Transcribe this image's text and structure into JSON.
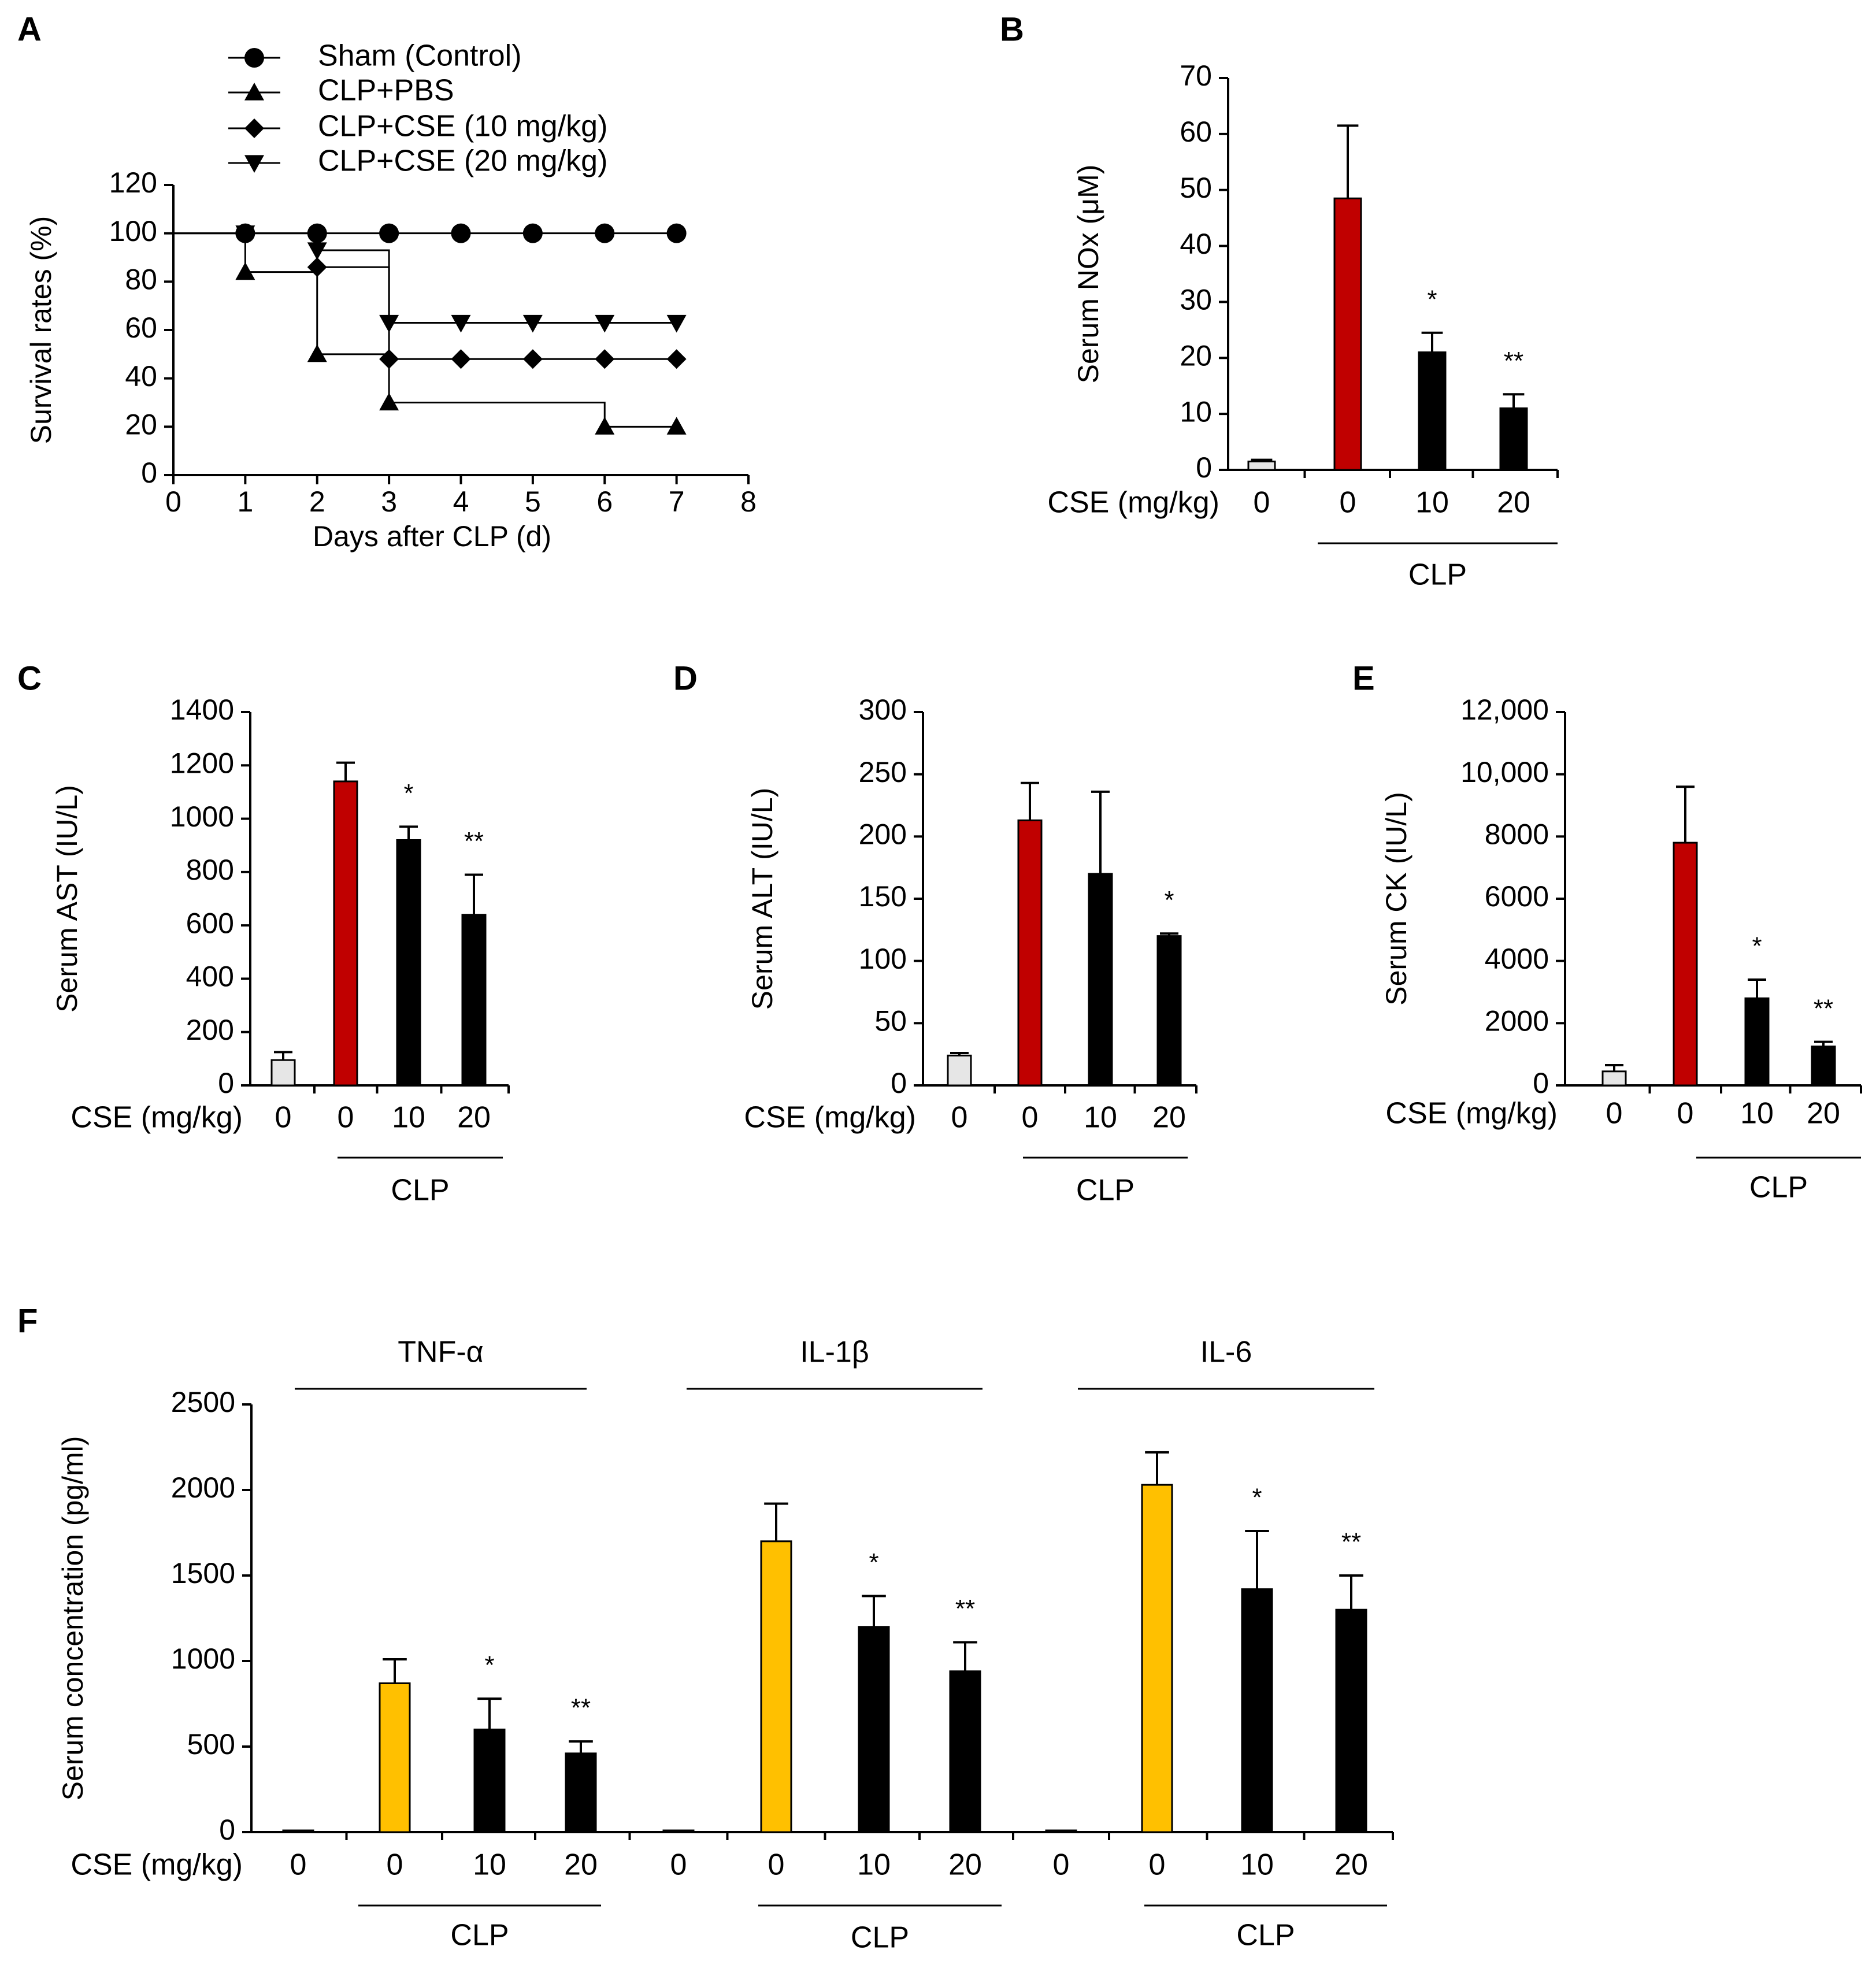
{
  "figure": {
    "colors": {
      "sham": "#e6e6e6",
      "clp_pbs_b_to_e": "#c00000",
      "clp_pbs_f": "#ffc000",
      "cse": "#000000"
    }
  },
  "chart_data": [
    {
      "panel": "A",
      "type": "line",
      "xlabel": "Days after CLP (d)",
      "ylabel": "Survival rates (%)",
      "xlim": [
        0,
        8
      ],
      "ylim": [
        0,
        120
      ],
      "xticks": [
        0,
        1,
        2,
        3,
        4,
        5,
        6,
        7,
        8
      ],
      "yticks": [
        0,
        20,
        40,
        60,
        80,
        100,
        120
      ],
      "legend_position": "top",
      "step_curve": true,
      "series": [
        {
          "name": "Sham (Control)",
          "marker": "circle",
          "x": [
            1,
            2,
            3,
            4,
            5,
            6,
            7
          ],
          "y": [
            100,
            100,
            100,
            100,
            100,
            100,
            100
          ]
        },
        {
          "name": "CLP+PBS",
          "marker": "triangle-up",
          "x": [
            1,
            2,
            3,
            6,
            7
          ],
          "y": [
            84,
            50,
            30,
            20,
            20
          ]
        },
        {
          "name": "CLP+CSE (10 mg/kg)",
          "marker": "diamond",
          "x": [
            1,
            2,
            3,
            4,
            5,
            6,
            7
          ],
          "y": [
            100,
            86,
            48,
            48,
            48,
            48,
            48
          ]
        },
        {
          "name": "CLP+CSE (20 mg/kg)",
          "marker": "triangle-down",
          "x": [
            1,
            2,
            3,
            4,
            5,
            6,
            7
          ],
          "y": [
            100,
            93,
            63,
            63,
            63,
            63,
            63
          ]
        }
      ]
    },
    {
      "panel": "B",
      "type": "bar",
      "ylabel": "Serum NOx (μM)",
      "ylim": [
        0,
        70
      ],
      "yticks": [
        "0",
        "10",
        "20",
        "30",
        "40",
        "50",
        "60",
        "70"
      ],
      "row_label": "CSE (mg/kg)",
      "categories": [
        "0",
        "0",
        "10",
        "20"
      ],
      "group_label": "CLP",
      "values": [
        1.5,
        48.5,
        21,
        11
      ],
      "errors": [
        0.3,
        13,
        3.5,
        2.5
      ],
      "significance": [
        "",
        "",
        "*",
        "**"
      ],
      "bar_colors": [
        "#e6e6e6",
        "#c00000",
        "#000000",
        "#000000"
      ]
    },
    {
      "panel": "C",
      "type": "bar",
      "ylabel": "Serum AST (IU/L)",
      "ylim": [
        0,
        1400
      ],
      "yticks": [
        "0",
        "200",
        "400",
        "600",
        "800",
        "1000",
        "1200",
        "1400"
      ],
      "row_label": "CSE (mg/kg)",
      "categories": [
        "0",
        "0",
        "10",
        "20"
      ],
      "group_label": "CLP",
      "values": [
        95,
        1140,
        920,
        640
      ],
      "errors": [
        30,
        70,
        50,
        150
      ],
      "significance": [
        "",
        "",
        "*",
        "**"
      ],
      "bar_colors": [
        "#e6e6e6",
        "#c00000",
        "#000000",
        "#000000"
      ]
    },
    {
      "panel": "D",
      "type": "bar",
      "ylabel": "Serum ALT (IU/L)",
      "ylim": [
        0,
        300
      ],
      "yticks": [
        "0",
        "50",
        "100",
        "150",
        "200",
        "250",
        "300"
      ],
      "row_label": "CSE (mg/kg)",
      "categories": [
        "0",
        "0",
        "10",
        "20"
      ],
      "group_label": "CLP",
      "values": [
        24,
        213,
        170,
        120
      ],
      "errors": [
        2,
        30,
        66,
        2
      ],
      "significance": [
        "",
        "",
        "",
        "*"
      ],
      "bar_colors": [
        "#e6e6e6",
        "#c00000",
        "#000000",
        "#000000"
      ]
    },
    {
      "panel": "E",
      "type": "bar",
      "ylabel": "Serum CK (IU/L)",
      "ylim": [
        0,
        12000
      ],
      "yticks": [
        "0",
        "2000",
        "4000",
        "6000",
        "8000",
        "10,000",
        "12,000"
      ],
      "row_label": "CSE (mg/kg)",
      "categories": [
        "0",
        "0",
        "10",
        "20"
      ],
      "group_label": "CLP",
      "values": [
        450,
        7800,
        2800,
        1250
      ],
      "errors": [
        200,
        1800,
        600,
        150
      ],
      "significance": [
        "",
        "",
        "*",
        "**"
      ],
      "bar_colors": [
        "#e6e6e6",
        "#c00000",
        "#000000",
        "#000000"
      ]
    },
    {
      "panel": "F",
      "type": "bar",
      "ylabel": "Serum concentration (pg/ml)",
      "ylim": [
        0,
        2500
      ],
      "yticks": [
        "0",
        "500",
        "1000",
        "1500",
        "2000",
        "2500"
      ],
      "row_label": "CSE (mg/kg)",
      "categories": [
        "0",
        "0",
        "10",
        "20",
        "0",
        "0",
        "10",
        "20",
        "0",
        "0",
        "10",
        "20"
      ],
      "group_labels": [
        "CLP",
        "CLP",
        "CLP"
      ],
      "cytokines": [
        "TNF-α",
        "IL-1β",
        "IL-6"
      ],
      "values": [
        10,
        870,
        600,
        460,
        10,
        1700,
        1200,
        940,
        10,
        2030,
        1420,
        1300
      ],
      "errors": [
        0,
        140,
        180,
        70,
        0,
        220,
        180,
        170,
        0,
        190,
        340,
        200
      ],
      "significance": [
        "",
        "",
        "*",
        "**",
        "",
        "",
        "*",
        "**",
        "",
        "",
        "*",
        "**"
      ],
      "bar_colors": [
        "#e6e6e6",
        "#ffc000",
        "#000000",
        "#000000",
        "#e6e6e6",
        "#ffc000",
        "#000000",
        "#000000",
        "#e6e6e6",
        "#ffc000",
        "#000000",
        "#000000"
      ]
    }
  ]
}
